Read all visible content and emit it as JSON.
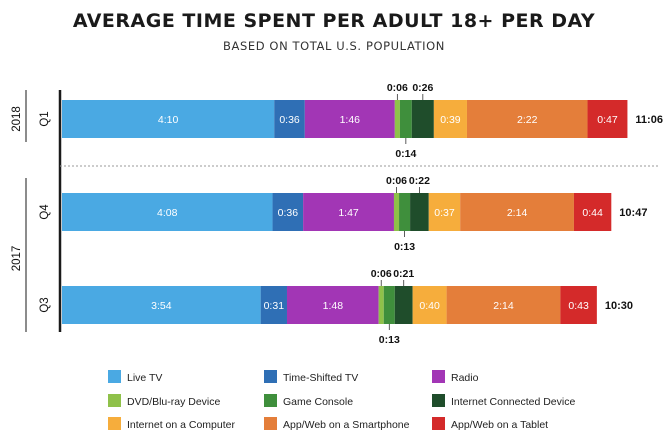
{
  "chart_data": {
    "type": "bar",
    "orientation": "horizontal",
    "stacked": true,
    "title": "AVERAGE TIME SPENT PER ADULT 18+ PER DAY",
    "subtitle": "BASED ON TOTAL U.S. POPULATION",
    "value_format": "hours:minutes",
    "categories": [
      {
        "year": "2018",
        "quarter": "Q1",
        "total": "11:06"
      },
      {
        "year": "2017",
        "quarter": "Q4",
        "total": "10:47"
      },
      {
        "year": "2017",
        "quarter": "Q3",
        "total": "10:30"
      }
    ],
    "series": [
      {
        "name": "Live TV",
        "color": "#4aa9e3",
        "values": [
          250,
          248,
          234
        ],
        "labels": [
          "4:10",
          "4:08",
          "3:54"
        ]
      },
      {
        "name": "Time-Shifted TV",
        "color": "#2f6fb5",
        "values": [
          36,
          36,
          31
        ],
        "labels": [
          "0:36",
          "0:36",
          "0:31"
        ]
      },
      {
        "name": "Radio",
        "color": "#a236b5",
        "values": [
          106,
          107,
          108
        ],
        "labels": [
          "1:46",
          "1:47",
          "1:48"
        ]
      },
      {
        "name": "DVD/Blu-ray Device",
        "color": "#8fc14a",
        "values": [
          6,
          6,
          6
        ],
        "labels": [
          "0:06",
          "0:06",
          "0:06"
        ]
      },
      {
        "name": "Game Console",
        "color": "#3f8f3c",
        "values": [
          14,
          13,
          13
        ],
        "labels": [
          "0:14",
          "0:13",
          "0:13"
        ]
      },
      {
        "name": "Internet Connected Device",
        "color": "#1f4d2b",
        "values": [
          26,
          22,
          21
        ],
        "labels": [
          "0:26",
          "0:22",
          "0:21"
        ]
      },
      {
        "name": "Internet on a Computer",
        "color": "#f6ad3c",
        "values": [
          39,
          37,
          40
        ],
        "labels": [
          "0:39",
          "0:37",
          "0:40"
        ]
      },
      {
        "name": "App/Web on a Smartphone",
        "color": "#e47e3a",
        "values": [
          142,
          134,
          134
        ],
        "labels": [
          "2:22",
          "2:14",
          "2:14"
        ]
      },
      {
        "name": "App/Web on a Tablet",
        "color": "#d42a2a",
        "values": [
          47,
          44,
          43
        ],
        "labels": [
          "0:47",
          "0:44",
          "0:43"
        ]
      }
    ],
    "grid": false,
    "legend_position": "bottom"
  }
}
